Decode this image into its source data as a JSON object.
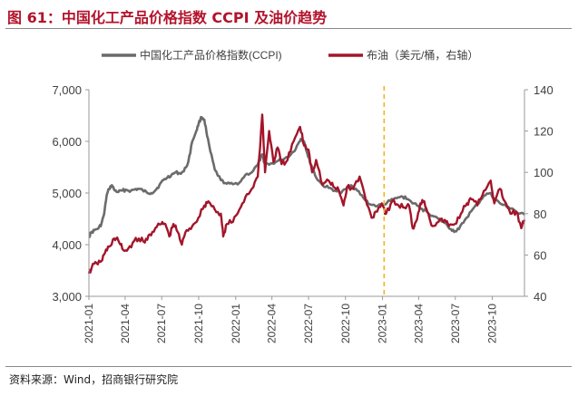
{
  "figure": {
    "title": "图 61：中国化工产品价格指数 CCPI 及油价趋势",
    "source": "资料来源：Wind，招商银行研究院"
  },
  "colors": {
    "title": "#b3132b",
    "ccpi": "#6b6b6b",
    "brent": "#a3152a",
    "marker": "#f5b21b",
    "axis": "#9a9a9a",
    "text": "#404040"
  },
  "chart_data": {
    "type": "line",
    "title": "",
    "x_type": "date",
    "x_range": [
      "2021-01-01",
      "2023-12-20"
    ],
    "x_ticks": [
      "2021-01",
      "2021-04",
      "2021-07",
      "2021-10",
      "2022-01",
      "2022-04",
      "2022-07",
      "2022-10",
      "2023-01",
      "2023-04",
      "2023-07",
      "2023-10"
    ],
    "y_left": {
      "ylim": [
        3000,
        7000
      ],
      "ticks": [
        "3,000",
        "4,000",
        "5,000",
        "6,000",
        "7,000"
      ]
    },
    "y_right": {
      "ylim": [
        40,
        140
      ],
      "ticks": [
        "40",
        "60",
        "80",
        "100",
        "120",
        "140"
      ]
    },
    "vertical_marker": {
      "x": "2023-01-05",
      "style": "dashed"
    },
    "series": [
      {
        "name": "中国化工产品价格指数(CCPI)",
        "axis": "left",
        "points": [
          [
            "2021-01-01",
            4150
          ],
          [
            "2021-01-06",
            4230
          ],
          [
            "2021-01-15",
            4280
          ],
          [
            "2021-01-25",
            4320
          ],
          [
            "2021-02-01",
            4400
          ],
          [
            "2021-02-08",
            4600
          ],
          [
            "2021-02-14",
            4950
          ],
          [
            "2021-02-20",
            5080
          ],
          [
            "2021-02-27",
            5150
          ],
          [
            "2021-03-06",
            5050
          ],
          [
            "2021-03-15",
            5020
          ],
          [
            "2021-03-25",
            5050
          ],
          [
            "2021-04-05",
            5060
          ],
          [
            "2021-04-15",
            5040
          ],
          [
            "2021-04-25",
            5070
          ],
          [
            "2021-05-05",
            5080
          ],
          [
            "2021-05-15",
            5050
          ],
          [
            "2021-05-25",
            5010
          ],
          [
            "2021-06-05",
            5000
          ],
          [
            "2021-06-15",
            5050
          ],
          [
            "2021-06-25",
            5150
          ],
          [
            "2021-07-05",
            5250
          ],
          [
            "2021-07-15",
            5300
          ],
          [
            "2021-07-25",
            5350
          ],
          [
            "2021-08-05",
            5400
          ],
          [
            "2021-08-15",
            5380
          ],
          [
            "2021-08-25",
            5420
          ],
          [
            "2021-09-05",
            5600
          ],
          [
            "2021-09-15",
            6000
          ],
          [
            "2021-09-25",
            6200
          ],
          [
            "2021-10-01",
            6350
          ],
          [
            "2021-10-08",
            6470
          ],
          [
            "2021-10-15",
            6420
          ],
          [
            "2021-10-22",
            6100
          ],
          [
            "2021-10-30",
            5800
          ],
          [
            "2021-11-10",
            5450
          ],
          [
            "2021-11-25",
            5250
          ],
          [
            "2021-12-10",
            5180
          ],
          [
            "2021-12-25",
            5170
          ],
          [
            "2022-01-10",
            5200
          ],
          [
            "2022-01-25",
            5350
          ],
          [
            "2022-02-10",
            5400
          ],
          [
            "2022-02-25",
            5550
          ],
          [
            "2022-03-08",
            5750
          ],
          [
            "2022-03-12",
            5600
          ],
          [
            "2022-03-25",
            5550
          ],
          [
            "2022-04-10",
            5600
          ],
          [
            "2022-04-25",
            5650
          ],
          [
            "2022-05-10",
            5700
          ],
          [
            "2022-05-25",
            5800
          ],
          [
            "2022-06-05",
            5950
          ],
          [
            "2022-06-12",
            6050
          ],
          [
            "2022-06-20",
            6000
          ],
          [
            "2022-06-30",
            5700
          ],
          [
            "2022-07-10",
            5500
          ],
          [
            "2022-07-20",
            5300
          ],
          [
            "2022-08-05",
            5150
          ],
          [
            "2022-08-20",
            5100
          ],
          [
            "2022-09-05",
            5050
          ],
          [
            "2022-09-20",
            5000
          ],
          [
            "2022-10-05",
            5100
          ],
          [
            "2022-10-15",
            5150
          ],
          [
            "2022-10-30",
            5050
          ],
          [
            "2022-11-15",
            4900
          ],
          [
            "2022-12-01",
            4780
          ],
          [
            "2022-12-20",
            4750
          ],
          [
            "2023-01-05",
            4780
          ],
          [
            "2023-01-20",
            4850
          ],
          [
            "2023-02-05",
            4900
          ],
          [
            "2023-02-20",
            4930
          ],
          [
            "2023-03-05",
            4880
          ],
          [
            "2023-03-20",
            4800
          ],
          [
            "2023-04-05",
            4700
          ],
          [
            "2023-04-20",
            4650
          ],
          [
            "2023-05-05",
            4560
          ],
          [
            "2023-05-20",
            4500
          ],
          [
            "2023-06-05",
            4420
          ],
          [
            "2023-06-20",
            4300
          ],
          [
            "2023-07-01",
            4260
          ],
          [
            "2023-07-10",
            4300
          ],
          [
            "2023-07-25",
            4480
          ],
          [
            "2023-08-10",
            4650
          ],
          [
            "2023-08-25",
            4780
          ],
          [
            "2023-09-10",
            4950
          ],
          [
            "2023-09-25",
            5000
          ],
          [
            "2023-10-05",
            4900
          ],
          [
            "2023-10-20",
            4800
          ],
          [
            "2023-11-05",
            4740
          ],
          [
            "2023-11-20",
            4700
          ],
          [
            "2023-12-05",
            4600
          ],
          [
            "2023-12-20",
            4580
          ]
        ]
      },
      {
        "name": "布油（美元/桶，右轴）",
        "axis": "right",
        "points": [
          [
            "2021-01-01",
            51
          ],
          [
            "2021-01-08",
            54
          ],
          [
            "2021-01-20",
            56
          ],
          [
            "2021-02-01",
            57
          ],
          [
            "2021-02-10",
            61
          ],
          [
            "2021-02-20",
            64
          ],
          [
            "2021-03-05",
            68
          ],
          [
            "2021-03-15",
            67
          ],
          [
            "2021-03-25",
            63
          ],
          [
            "2021-04-05",
            62
          ],
          [
            "2021-04-20",
            66
          ],
          [
            "2021-05-05",
            68
          ],
          [
            "2021-05-20",
            66
          ],
          [
            "2021-06-01",
            70
          ],
          [
            "2021-06-15",
            73
          ],
          [
            "2021-06-30",
            75
          ],
          [
            "2021-07-10",
            75
          ],
          [
            "2021-07-20",
            69
          ],
          [
            "2021-07-30",
            75
          ],
          [
            "2021-08-10",
            71
          ],
          [
            "2021-08-20",
            65
          ],
          [
            "2021-09-01",
            72
          ],
          [
            "2021-09-15",
            74
          ],
          [
            "2021-09-30",
            78
          ],
          [
            "2021-10-15",
            84
          ],
          [
            "2021-10-25",
            86
          ],
          [
            "2021-11-10",
            82
          ],
          [
            "2021-11-25",
            80
          ],
          [
            "2021-12-01",
            69
          ],
          [
            "2021-12-10",
            75
          ],
          [
            "2021-12-25",
            76
          ],
          [
            "2022-01-10",
            82
          ],
          [
            "2022-01-25",
            88
          ],
          [
            "2022-02-10",
            92
          ],
          [
            "2022-02-25",
            98
          ],
          [
            "2022-03-08",
            128
          ],
          [
            "2022-03-15",
            100
          ],
          [
            "2022-03-25",
            120
          ],
          [
            "2022-04-05",
            105
          ],
          [
            "2022-04-15",
            112
          ],
          [
            "2022-04-25",
            104
          ],
          [
            "2022-05-10",
            106
          ],
          [
            "2022-05-25",
            115
          ],
          [
            "2022-06-10",
            122
          ],
          [
            "2022-06-20",
            113
          ],
          [
            "2022-07-01",
            111
          ],
          [
            "2022-07-10",
            100
          ],
          [
            "2022-07-20",
            106
          ],
          [
            "2022-08-05",
            94
          ],
          [
            "2022-08-20",
            96
          ],
          [
            "2022-09-01",
            93
          ],
          [
            "2022-09-15",
            91
          ],
          [
            "2022-09-26",
            84
          ],
          [
            "2022-10-05",
            93
          ],
          [
            "2022-10-20",
            92
          ],
          [
            "2022-11-05",
            98
          ],
          [
            "2022-11-20",
            87
          ],
          [
            "2022-12-05",
            78
          ],
          [
            "2022-12-15",
            81
          ],
          [
            "2022-12-30",
            85
          ],
          [
            "2023-01-10",
            80
          ],
          [
            "2023-01-25",
            86
          ],
          [
            "2023-02-10",
            84
          ],
          [
            "2023-02-25",
            83
          ],
          [
            "2023-03-08",
            84
          ],
          [
            "2023-03-17",
            73
          ],
          [
            "2023-03-25",
            76
          ],
          [
            "2023-04-05",
            85
          ],
          [
            "2023-04-15",
            86
          ],
          [
            "2023-04-25",
            80
          ],
          [
            "2023-05-05",
            74
          ],
          [
            "2023-05-20",
            76
          ],
          [
            "2023-06-05",
            77
          ],
          [
            "2023-06-15",
            74
          ],
          [
            "2023-06-30",
            75
          ],
          [
            "2023-07-15",
            80
          ],
          [
            "2023-07-30",
            85
          ],
          [
            "2023-08-10",
            87
          ],
          [
            "2023-08-25",
            84
          ],
          [
            "2023-09-10",
            91
          ],
          [
            "2023-09-27",
            96
          ],
          [
            "2023-10-06",
            85
          ],
          [
            "2023-10-20",
            92
          ],
          [
            "2023-11-01",
            86
          ],
          [
            "2023-11-15",
            80
          ],
          [
            "2023-11-30",
            81
          ],
          [
            "2023-12-12",
            73
          ],
          [
            "2023-12-20",
            77
          ]
        ]
      }
    ]
  }
}
